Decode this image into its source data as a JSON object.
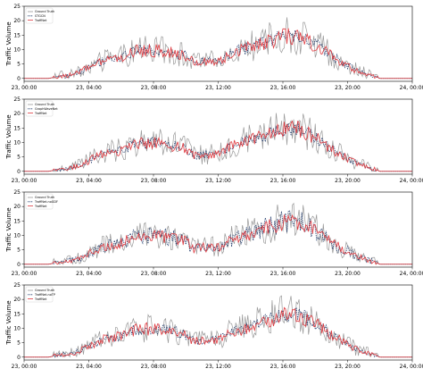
{
  "chart_data": [
    {
      "type": "line",
      "ylabel": "Traffic Volume",
      "xlabel": "",
      "x_ticks": [
        "23, 00:00",
        "23, 04:00",
        "23, 08:00",
        "23, 12:00",
        "23, 16:00",
        "23, 20:00",
        "24, 00:00"
      ],
      "x_range_hours": [
        0,
        24
      ],
      "y_ticks": [
        0,
        5,
        10,
        15,
        20,
        25
      ],
      "ylim": [
        -1,
        25
      ],
      "legend_position": "upper-left",
      "series": [
        {
          "name": "Ground Truth",
          "color": "#999999",
          "style": "solid",
          "role": "truth"
        },
        {
          "name": "STGCN",
          "color": "#1f3a6b",
          "style": "dashed",
          "role": "model"
        },
        {
          "name": "TraffNet",
          "color": "#e0393f",
          "style": "solid",
          "role": "traffnet"
        }
      ]
    },
    {
      "type": "line",
      "ylabel": "Traffic Volume",
      "xlabel": "",
      "x_ticks": [
        "23, 00:00",
        "23, 04:00",
        "23, 08:00",
        "23, 12:00",
        "23, 16:00",
        "23, 20:00",
        "24, 00:00"
      ],
      "x_range_hours": [
        0,
        24
      ],
      "y_ticks": [
        0,
        5,
        10,
        15,
        20,
        25
      ],
      "ylim": [
        -1,
        25
      ],
      "legend_position": "upper-left",
      "series": [
        {
          "name": "Ground Truth",
          "color": "#999999",
          "style": "solid",
          "role": "truth"
        },
        {
          "name": "GraphWaveNet",
          "color": "#1f3a6b",
          "style": "dashed",
          "role": "model"
        },
        {
          "name": "TraffNet",
          "color": "#e0393f",
          "style": "solid",
          "role": "traffnet"
        }
      ]
    },
    {
      "type": "line",
      "ylabel": "Traffic Volume",
      "xlabel": "",
      "x_ticks": [
        "23, 00:00",
        "23, 04:00",
        "23, 08:00",
        "23, 12:00",
        "23, 16:00",
        "23, 20:00",
        "24, 00:00"
      ],
      "x_range_hours": [
        0,
        24
      ],
      "y_ticks": [
        0,
        5,
        10,
        15,
        20,
        25
      ],
      "ylim": [
        -1,
        25
      ],
      "legend_position": "upper-left",
      "series": [
        {
          "name": "Ground Truth",
          "color": "#999999",
          "style": "solid",
          "role": "truth"
        },
        {
          "name": "TraffNet-noGDF",
          "color": "#1f3a6b",
          "style": "dashed",
          "role": "model"
        },
        {
          "name": "TraffNet",
          "color": "#e0393f",
          "style": "solid",
          "role": "traffnet"
        }
      ]
    },
    {
      "type": "line",
      "ylabel": "Traffic Volume",
      "xlabel": "",
      "x_ticks": [
        "23, 00:00",
        "23, 04:00",
        "23, 08:00",
        "23, 12:00",
        "23, 16:00",
        "23, 20:00",
        "24, 00:00"
      ],
      "x_range_hours": [
        0,
        24
      ],
      "y_ticks": [
        0,
        5,
        10,
        15,
        20,
        25
      ],
      "ylim": [
        -1,
        25
      ],
      "legend_position": "upper-left",
      "series": [
        {
          "name": "Ground Truth",
          "color": "#999999",
          "style": "solid",
          "role": "truth"
        },
        {
          "name": "TraffNet-noTP",
          "color": "#1f3a6b",
          "style": "dashed",
          "role": "model"
        },
        {
          "name": "TraffNet",
          "color": "#e0393f",
          "style": "solid",
          "role": "traffnet"
        }
      ]
    }
  ],
  "profile": {
    "hours": [
      0,
      1.5,
      2.0,
      2.5,
      3.0,
      3.5,
      4.0,
      5.0,
      6.0,
      7.0,
      8.0,
      9.0,
      10.0,
      10.5,
      11.0,
      12.0,
      13.0,
      14.0,
      15.0,
      16.0,
      17.0,
      18.0,
      19.0,
      20.0,
      20.5,
      21.0,
      21.5,
      22.0,
      24.0
    ],
    "volume": [
      0,
      0,
      0.5,
      1.0,
      1.3,
      2.5,
      3.8,
      6.5,
      7.5,
      10.0,
      10.0,
      9.5,
      8.0,
      5.5,
      6.0,
      6.0,
      9.5,
      11.0,
      13.0,
      15.0,
      15.0,
      12.0,
      8.0,
      4.5,
      3.0,
      2.0,
      1.0,
      0,
      0
    ]
  }
}
